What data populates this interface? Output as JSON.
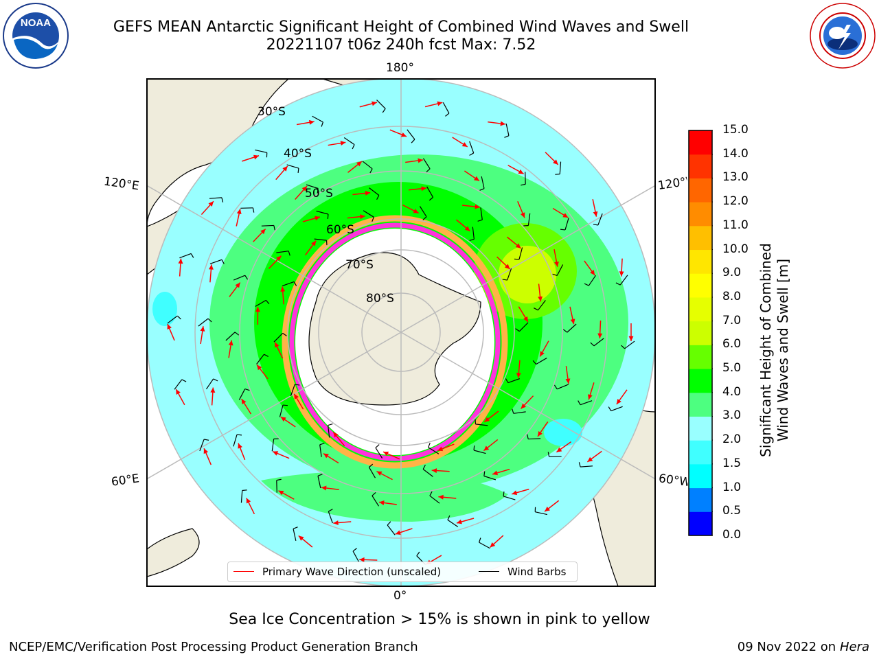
{
  "title": {
    "line1": "GEFS MEAN Antarctic Significant Height of Combined Wind Waves and Swell",
    "line2": "20221107 t06z 240h fcst   Max: 7.52"
  },
  "logos": {
    "noaa": {
      "name": "NOAA",
      "ring_text": "NATIONAL OCEANIC AND ATMOSPHERIC ADMINISTRATION · U.S. DEPARTMENT OF COMMERCE"
    },
    "nws": {
      "ring_text": "NATIONAL WEATHER SERVICE"
    }
  },
  "map": {
    "projection": "south-polar-stereographic",
    "longitude_labels": {
      "top": "180°",
      "bottom": "0°",
      "left_upper": "120°E",
      "left_lower": "60°E",
      "right_upper": "120°W",
      "right_lower": "60°W"
    },
    "latitude_labels": [
      "30°S",
      "40°S",
      "50°S",
      "60°S",
      "70°S",
      "80°S"
    ],
    "colors": {
      "land": "#efecdc",
      "ice_free_land": "#ffffff",
      "ice_edge_primary": "#ff33dd",
      "ice_edge_secondary": "#ffb347",
      "wave_arrow": "#ff0000",
      "wind_barb": "#000000",
      "grid": "#bbbbbb"
    }
  },
  "colorbar": {
    "label_line1": "Significant Height of Combined",
    "label_line2": "Wind Waves and Swell [m]",
    "ticks": [
      "0.0",
      "0.5",
      "1.0",
      "1.5",
      "2.0",
      "3.0",
      "4.0",
      "5.0",
      "6.0",
      "7.0",
      "8.0",
      "9.0",
      "10.0",
      "11.0",
      "12.0",
      "13.0",
      "14.0",
      "15.0"
    ],
    "bin_colors": [
      "#0000ff",
      "#0080ff",
      "#00ffff",
      "#40ffff",
      "#99ffff",
      "#4dff80",
      "#00ff00",
      "#66ff00",
      "#ccff00",
      "#e6ff00",
      "#ffff00",
      "#ffe600",
      "#ffbf00",
      "#ff8c00",
      "#ff6600",
      "#ff3300",
      "#ff0000"
    ]
  },
  "legend": {
    "wave_direction_label": "Primary Wave Direction (unscaled)",
    "wind_barbs_label": "Wind Barbs"
  },
  "caption": "Sea Ice Concentration > 15% is shown in pink to yellow",
  "footer": {
    "left": "NCEP/EMC/Verification Post Processing Product Generation Branch",
    "date": "09 Nov 2022 on",
    "machine": "Hera"
  }
}
